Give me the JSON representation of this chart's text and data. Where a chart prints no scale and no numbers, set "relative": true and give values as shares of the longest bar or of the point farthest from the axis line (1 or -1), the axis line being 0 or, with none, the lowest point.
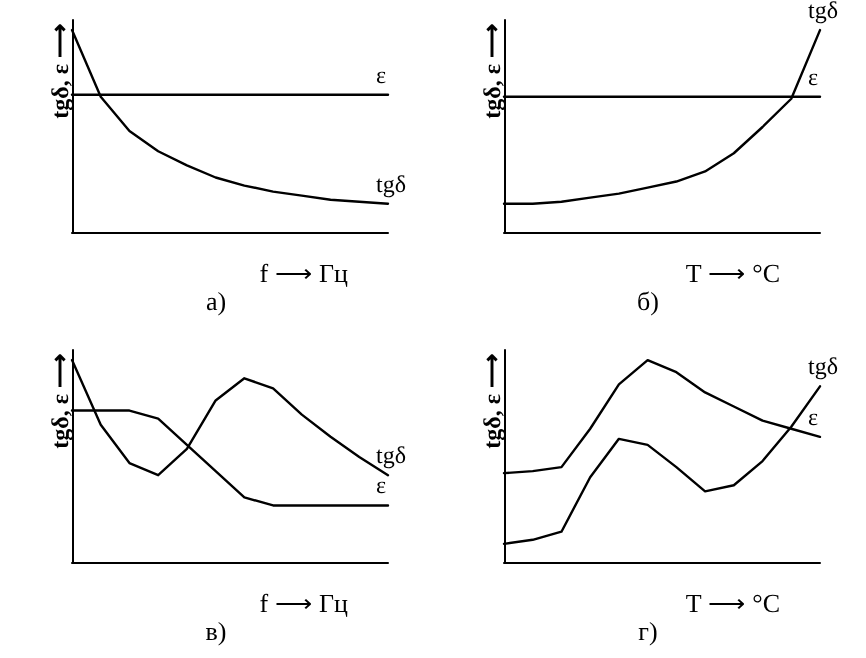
{
  "chart_data": [
    {
      "type": "line",
      "title": "а)",
      "xlabel": "f ⟶ Гц",
      "ylabel": "tgδ, ε ⟶",
      "relative": true,
      "marker": "none",
      "line_style": "solid",
      "categories": [
        null,
        null,
        null,
        null,
        null,
        null,
        null,
        null,
        null,
        null,
        null,
        null
      ],
      "series": [
        {
          "name": "ε",
          "color": "#000000",
          "values": [
            0.68,
            0.68,
            0.68,
            0.68,
            0.68,
            0.68,
            0.68,
            0.68,
            0.68,
            0.68,
            0.68,
            0.68
          ]
        },
        {
          "name": "tgδ",
          "color": "#000000",
          "values": [
            1.0,
            0.67,
            0.5,
            0.4,
            0.33,
            0.27,
            0.23,
            0.2,
            0.18,
            0.16,
            0.15,
            0.14
          ]
        }
      ]
    },
    {
      "type": "line",
      "title": "б)",
      "xlabel": "T ⟶ °C",
      "ylabel": "tgδ, ε ⟶",
      "relative": true,
      "marker": "none",
      "line_style": "solid",
      "categories": [
        null,
        null,
        null,
        null,
        null,
        null,
        null,
        null,
        null,
        null,
        null,
        null
      ],
      "series": [
        {
          "name": "ε",
          "color": "#000000",
          "values": [
            0.67,
            0.67,
            0.67,
            0.67,
            0.67,
            0.67,
            0.67,
            0.67,
            0.67,
            0.67,
            0.67,
            0.67
          ]
        },
        {
          "name": "tgδ",
          "color": "#000000",
          "values": [
            0.14,
            0.14,
            0.15,
            0.17,
            0.19,
            0.22,
            0.25,
            0.3,
            0.39,
            0.52,
            0.66,
            1.0
          ]
        }
      ]
    },
    {
      "type": "line",
      "title": "в)",
      "xlabel": "f ⟶ Гц",
      "ylabel": "tgδ, ε ⟶",
      "relative": true,
      "marker": "none",
      "line_style": "solid",
      "categories": [
        null,
        null,
        null,
        null,
        null,
        null,
        null,
        null,
        null,
        null,
        null,
        null
      ],
      "series": [
        {
          "name": "tgδ",
          "color": "#000000",
          "values": [
            1.0,
            0.68,
            0.49,
            0.43,
            0.56,
            0.8,
            0.91,
            0.86,
            0.73,
            0.62,
            0.52,
            0.43
          ]
        },
        {
          "name": "ε",
          "color": "#000000",
          "values": [
            0.75,
            0.75,
            0.75,
            0.71,
            0.58,
            0.45,
            0.32,
            0.28,
            0.28,
            0.28,
            0.28,
            0.28
          ]
        }
      ]
    },
    {
      "type": "line",
      "title": "г)",
      "xlabel": "T ⟶ °C",
      "ylabel": "tgδ, ε ⟶",
      "relative": true,
      "marker": "none",
      "line_style": "solid",
      "categories": [
        null,
        null,
        null,
        null,
        null,
        null,
        null,
        null,
        null,
        null,
        null,
        null
      ],
      "series": [
        {
          "name": "ε",
          "color": "#000000",
          "values": [
            0.44,
            0.45,
            0.47,
            0.66,
            0.88,
            1.0,
            0.94,
            0.84,
            0.77,
            0.7,
            0.66,
            0.62
          ]
        },
        {
          "name": "tgδ",
          "color": "#000000",
          "values": [
            0.09,
            0.11,
            0.15,
            0.42,
            0.61,
            0.58,
            0.47,
            0.35,
            0.38,
            0.5,
            0.67,
            0.87
          ]
        }
      ]
    }
  ]
}
